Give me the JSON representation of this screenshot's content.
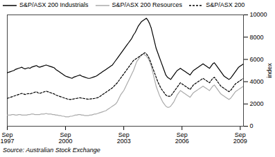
{
  "chart_data": {
    "type": "line",
    "caption": "Source: Australian Stock Exchange",
    "y_label": "index",
    "legend": "upper left",
    "grid": false,
    "ylim": [
      0,
      10000
    ],
    "yticks": [
      0,
      2000,
      4000,
      6000,
      8000,
      10000
    ],
    "categories": [
      "Sep\n1997",
      null,
      null,
      null,
      null,
      null,
      null,
      null,
      null,
      null,
      null,
      null,
      null,
      null,
      null,
      null,
      null,
      null,
      null,
      null,
      null,
      null,
      null,
      null,
      null,
      null,
      null,
      null,
      null,
      null,
      null,
      null,
      null,
      null,
      null,
      null,
      "Sep\n2000",
      null,
      null,
      null,
      null,
      null,
      null,
      null,
      null,
      null,
      null,
      null,
      null,
      null,
      null,
      null,
      null,
      null,
      null,
      null,
      null,
      null,
      null,
      null,
      null,
      null,
      null,
      null,
      null,
      null,
      null,
      null,
      null,
      null,
      null,
      null,
      "Sep\n2003",
      null,
      null,
      null,
      null,
      null,
      null,
      null,
      null,
      null,
      null,
      null,
      null,
      null,
      null,
      null,
      null,
      null,
      null,
      null,
      null,
      null,
      null,
      null,
      null,
      null,
      null,
      null,
      null,
      null,
      null,
      null,
      null,
      null,
      null,
      null,
      "Sep\n2006",
      null,
      null,
      null,
      null,
      null,
      null,
      null,
      null,
      null,
      null,
      null,
      null,
      null,
      null,
      null,
      null,
      null,
      null,
      null,
      null,
      null,
      null,
      null,
      null,
      null,
      null,
      null,
      null,
      null,
      null,
      null,
      null,
      null,
      null,
      null,
      "Sep\n2009",
      null,
      null
    ],
    "series": [
      {
        "name": "S&P/ASX 200 Industrials",
        "color": "#000000",
        "line_style": "solid",
        "values": [
          4800,
          4850,
          4900,
          4950,
          5000,
          5100,
          5150,
          5200,
          5250,
          5300,
          5200,
          5150,
          5200,
          5250,
          5200,
          5300,
          5350,
          5400,
          5450,
          5350,
          5300,
          5350,
          5400,
          5450,
          5500,
          5450,
          5400,
          5350,
          5300,
          5250,
          5100,
          5000,
          4900,
          4800,
          4700,
          4600,
          4500,
          4450,
          4400,
          4350,
          4300,
          4400,
          4450,
          4500,
          4550,
          4600,
          4500,
          4450,
          4400,
          4350,
          4300,
          4300,
          4350,
          4400,
          4450,
          4500,
          4600,
          4700,
          4800,
          4900,
          5000,
          5100,
          5200,
          5300,
          5400,
          5500,
          5700,
          5900,
          6100,
          6300,
          6500,
          6700,
          6900,
          7100,
          7300,
          7500,
          7700,
          7900,
          8200,
          8400,
          8700,
          9000,
          9200,
          9400,
          9500,
          9600,
          9700,
          9500,
          9200,
          8800,
          8200,
          7600,
          7000,
          6600,
          6200,
          5800,
          5400,
          5000,
          4600,
          4400,
          4300,
          4200,
          4400,
          4600,
          4800,
          5000,
          5100,
          5200,
          5100,
          5000,
          4900,
          4800,
          4700,
          4600,
          4800,
          5000,
          5100,
          5200,
          5300,
          5400,
          5500,
          5600,
          5500,
          5400,
          5300,
          5200,
          5400,
          5600,
          5700,
          5500,
          5300,
          5100,
          4900,
          4700,
          4500,
          4400,
          4300,
          4200,
          4300,
          4500,
          4700,
          4900,
          5100,
          5300,
          5400,
          5500,
          5600
        ]
      },
      {
        "name": "S&P/ASX 200 Resources",
        "color": "#aaaaaa",
        "line_style": "solid",
        "values": [
          1000,
          1000,
          1000,
          1050,
          1050,
          1000,
          1000,
          1050,
          1050,
          1000,
          1000,
          1000,
          1000,
          1050,
          1050,
          1100,
          1100,
          1050,
          1050,
          1050,
          1050,
          1100,
          1100,
          1100,
          1150,
          1100,
          1100,
          1100,
          1050,
          1050,
          1000,
          1000,
          950,
          950,
          900,
          900,
          850,
          850,
          850,
          900,
          900,
          950,
          1000,
          1000,
          1050,
          1050,
          1000,
          1000,
          950,
          950,
          950,
          1000,
          1000,
          1050,
          1100,
          1100,
          1150,
          1200,
          1250,
          1300,
          1350,
          1400,
          1500,
          1600,
          1700,
          1800,
          1900,
          2000,
          2200,
          2500,
          2800,
          3000,
          3200,
          3500,
          3800,
          4100,
          4400,
          4700,
          5000,
          5400,
          5800,
          6000,
          6200,
          6400,
          6500,
          6400,
          6300,
          6100,
          5800,
          5400,
          4800,
          4200,
          3600,
          3200,
          2800,
          2500,
          2200,
          2000,
          1800,
          1700,
          1700,
          1800,
          2000,
          2200,
          2500,
          2800,
          3000,
          3200,
          3100,
          3000,
          2900,
          2800,
          2700,
          2600,
          2800,
          3000,
          3100,
          3200,
          3300,
          3400,
          3500,
          3600,
          3500,
          3400,
          3300,
          3200,
          3400,
          3600,
          3700,
          3500,
          3300,
          3100,
          2900,
          2800,
          2700,
          2600,
          2500,
          2400,
          2500,
          2700,
          2900,
          3100,
          3200,
          3300,
          3400,
          3500,
          3600
        ]
      },
      {
        "name": "S&P/ASX 200",
        "color": "#000000",
        "line_style": "dashed",
        "values": [
          2500,
          2550,
          2600,
          2650,
          2700,
          2750,
          2800,
          2850,
          2900,
          2950,
          2900,
          2850,
          2900,
          2930,
          2900,
          2950,
          3000,
          3050,
          3100,
          3000,
          2950,
          3000,
          3050,
          3100,
          3150,
          3100,
          3050,
          3000,
          2950,
          2900,
          2800,
          2750,
          2700,
          2650,
          2600,
          2550,
          2500,
          2450,
          2420,
          2400,
          2420,
          2450,
          2480,
          2500,
          2530,
          2560,
          2520,
          2500,
          2470,
          2450,
          2430,
          2440,
          2460,
          2480,
          2500,
          2530,
          2570,
          2650,
          2750,
          2850,
          2950,
          3050,
          3150,
          3250,
          3350,
          3450,
          3600,
          3750,
          3900,
          4100,
          4300,
          4500,
          4700,
          4900,
          5100,
          5300,
          5500,
          5700,
          5900,
          6000,
          6100,
          6200,
          6300,
          6400,
          6500,
          6600,
          6500,
          6300,
          6000,
          5600,
          5200,
          4800,
          4400,
          4000,
          3700,
          3400,
          3200,
          3000,
          2800,
          2700,
          2700,
          2700,
          2900,
          3100,
          3300,
          3500,
          3700,
          3900,
          3800,
          3700,
          3600,
          3500,
          3400,
          3300,
          3500,
          3700,
          3800,
          3900,
          4000,
          4100,
          4200,
          4300,
          4200,
          4100,
          4000,
          3900,
          4100,
          4300,
          4400,
          4200,
          4000,
          3800,
          3600,
          3500,
          3400,
          3300,
          3200,
          3100,
          3200,
          3400,
          3600,
          3800,
          3900,
          4000,
          4100,
          4200,
          4300
        ]
      }
    ]
  }
}
